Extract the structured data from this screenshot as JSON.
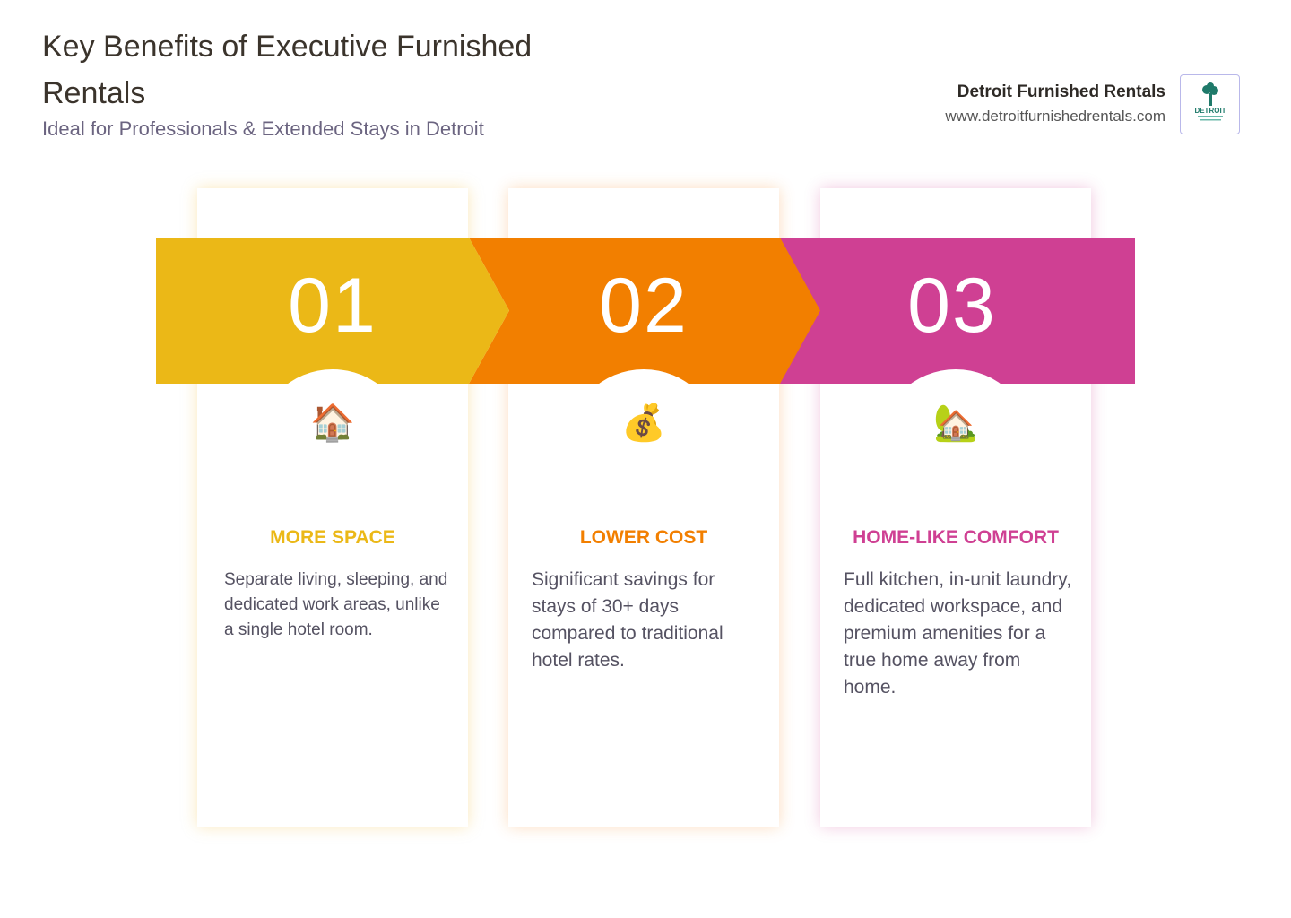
{
  "header": {
    "title": "Key Benefits of Executive Furnished Rentals",
    "subtitle": "Ideal for Professionals & Extended Stays in Detroit"
  },
  "brand": {
    "name": "Detroit Furnished Rentals",
    "url": "www.detroitfurnishedrentals.com",
    "logo_text": "DETROIT FURNISHED RENTALS"
  },
  "colors": {
    "yellow": "#ebb817",
    "orange": "#f27f00",
    "pink": "#cf4093"
  },
  "benefits": [
    {
      "number": "01",
      "icon": "house-icon",
      "emoji": "🏠",
      "title": "MORE SPACE",
      "text": "Separate living, sleeping, and dedicated work areas, unlike a single hotel room."
    },
    {
      "number": "02",
      "icon": "money-bag-icon",
      "emoji": "💰",
      "title": "LOWER COST",
      "text": "Significant savings for stays of 30+ days compared to traditional hotel rates."
    },
    {
      "number": "03",
      "icon": "house-with-garden-icon",
      "emoji": "🏡",
      "title": "HOME-LIKE COMFORT",
      "text": "Full kitchen, in-unit laundry, dedicated workspace, and premium amenities for a true home away from home."
    }
  ]
}
